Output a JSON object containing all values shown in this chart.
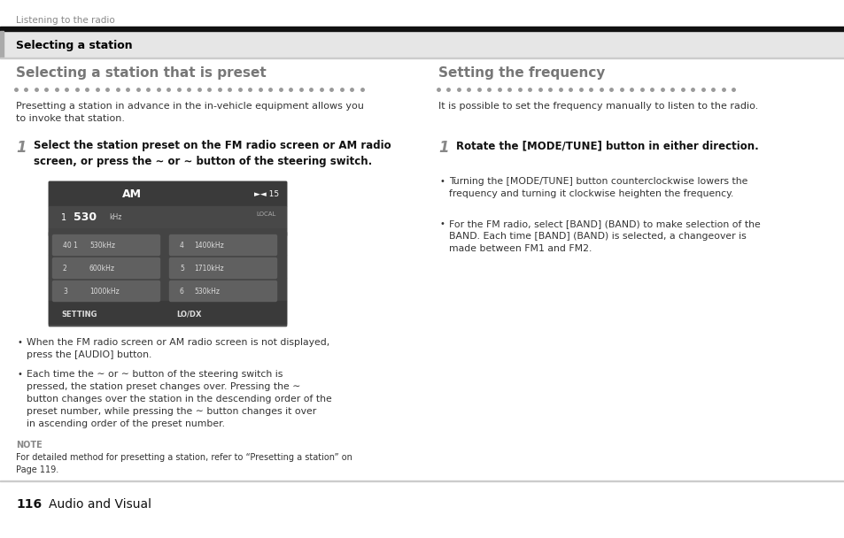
{
  "bg_color": "#ffffff",
  "page_width": 9.54,
  "page_height": 6.08,
  "top_label": "Listening to the radio",
  "section_title": "Selecting a station",
  "left_heading": "Selecting a station that is preset",
  "right_heading": "Setting the frequency",
  "left_intro": "Presetting a station in advance in the in-vehicle equipment allows you\nto invoke that station.",
  "right_intro": "It is possible to set the frequency manually to listen to the radio.",
  "step1_left_bold": "Select the station preset on the FM radio screen or AM radio\nscreen, or press the ∼ or ∼ button of the steering switch.",
  "step1_right_bold": "Rotate the [MODE/TUNE] button in either direction.",
  "bullet_left_1": "When the FM radio screen or AM radio screen is not displayed,\npress the [AUDIO] button.",
  "bullet_left_2": "Each time the ∼ or ∼ button of the steering switch is\npressed, the station preset changes over. Pressing the ∼\nbutton changes over the station in the descending order of the\npreset number, while pressing the ∼ button changes it over\nin ascending order of the preset number.",
  "bullet_right_1": "Turning the [MODE/TUNE] button counterclockwise lowers the\nfrequency and turning it clockwise heighten the frequency.",
  "bullet_right_2": "For the FM radio, select [BAND] (BAND) to make selection of the\nBAND. Each time [BAND] (BAND) is selected, a changeover is\nmade between FM1 and FM2.",
  "note_label": "NOTE",
  "note_text": "For detailed method for presetting a station, refer to “Presetting a station” on\nPage 119.",
  "footer_number": "116",
  "footer_text": "Audio and Visual",
  "section_bg": "#e6e6e6",
  "heading_color": "#777777",
  "body_color": "#333333",
  "dot_color": "#999999",
  "screen_bg": "#525252",
  "screen_dark": "#3d3d3d",
  "screen_text": "#ffffff",
  "screen_button_bg": "#636363"
}
